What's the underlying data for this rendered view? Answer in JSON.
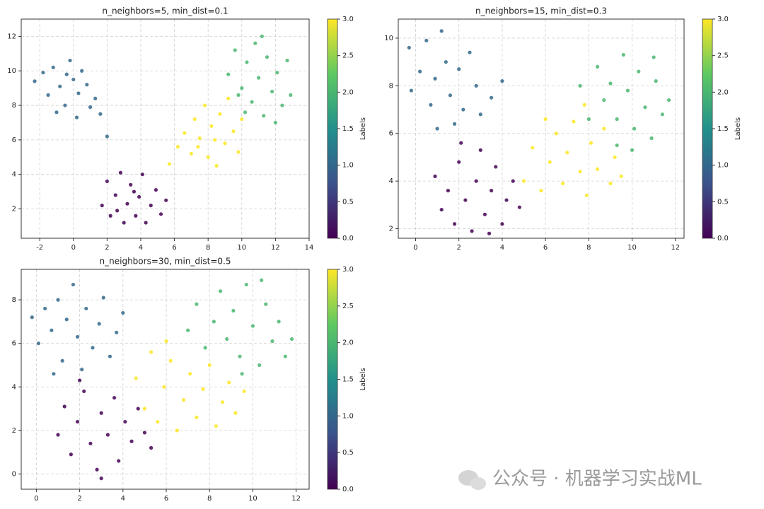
{
  "chart_data": [
    {
      "type": "scatter",
      "title": "n_neighbors=5, min_dist=0.1",
      "grid": true,
      "colormap": "viridis",
      "xlim": [
        -3.1,
        14
      ],
      "xticks": [
        -2,
        0,
        2,
        4,
        6,
        8,
        10,
        12,
        14
      ],
      "ylim": [
        0.3,
        13
      ],
      "yticks": [
        2,
        4,
        6,
        8,
        10,
        12
      ],
      "x": [
        -2.3,
        -1.8,
        -1.5,
        -1.2,
        -0.8,
        -0.5,
        -0.2,
        0.0,
        0.3,
        0.5,
        0.8,
        1.0,
        -1.0,
        0.2,
        1.3,
        -0.4,
        1.6,
        2.0,
        1.7,
        2.0,
        2.2,
        2.5,
        2.8,
        3.0,
        3.2,
        3.4,
        3.7,
        3.9,
        4.1,
        4.3,
        4.6,
        4.9,
        5.2,
        5.5,
        2.6,
        3.6,
        6.2,
        6.6,
        7.0,
        7.2,
        7.5,
        7.8,
        8.0,
        8.2,
        8.5,
        8.7,
        9.0,
        9.2,
        9.5,
        9.8,
        10.0,
        8.4,
        7.4,
        5.7,
        9.2,
        9.6,
        10.0,
        10.3,
        10.6,
        10.8,
        11.0,
        11.3,
        11.5,
        11.8,
        12.1,
        12.4,
        12.7,
        12.9,
        11.2,
        10.2,
        12.0,
        9.8
      ],
      "y": [
        9.4,
        9.9,
        8.6,
        10.2,
        9.1,
        8.0,
        10.6,
        9.5,
        8.7,
        10.0,
        9.2,
        7.9,
        7.6,
        7.3,
        8.4,
        9.8,
        7.5,
        6.2,
        2.2,
        3.6,
        1.6,
        2.8,
        4.1,
        1.2,
        2.3,
        3.4,
        1.6,
        2.7,
        4.0,
        1.2,
        2.2,
        3.1,
        1.7,
        2.5,
        1.9,
        3.0,
        5.6,
        6.4,
        5.2,
        7.2,
        6.1,
        8.0,
        5.0,
        6.8,
        4.5,
        7.5,
        5.8,
        8.4,
        6.5,
        5.3,
        7.2,
        6.0,
        5.6,
        4.6,
        9.8,
        11.2,
        9.0,
        10.5,
        8.2,
        11.6,
        9.6,
        7.4,
        10.8,
        8.8,
        9.9,
        8.0,
        10.6,
        8.6,
        12.0,
        7.6,
        7.0,
        8.6
      ],
      "c": [
        1,
        1,
        1,
        1,
        1,
        1,
        1,
        1,
        1,
        1,
        1,
        1,
        1,
        1,
        1,
        1,
        1,
        1,
        0,
        0,
        0,
        0,
        0,
        0,
        0,
        0,
        0,
        0,
        0,
        0,
        0,
        0,
        0,
        0,
        0,
        0,
        3,
        3,
        3,
        3,
        3,
        3,
        3,
        3,
        3,
        3,
        3,
        3,
        3,
        3,
        3,
        3,
        3,
        3,
        2,
        2,
        2,
        2,
        2,
        2,
        2,
        2,
        2,
        2,
        2,
        2,
        2,
        2,
        2,
        2,
        2,
        2
      ],
      "clim": [
        0,
        3
      ],
      "colorbar_label": "Labels",
      "cticks": [
        {
          "value": 0,
          "label": "0.0"
        },
        {
          "value": 0.5,
          "label": "0.5"
        },
        {
          "value": 1,
          "label": "1.0"
        },
        {
          "value": 1.5,
          "label": "1.5"
        },
        {
          "value": 2,
          "label": "2.0"
        },
        {
          "value": 2.5,
          "label": "2.5"
        },
        {
          "value": 3,
          "label": "3.0"
        }
      ]
    },
    {
      "type": "scatter",
      "title": "n_neighbors=15, min_dist=0.3",
      "grid": true,
      "colormap": "viridis",
      "xlim": [
        -0.8,
        12.4
      ],
      "xticks": [
        0,
        2,
        4,
        6,
        8,
        10,
        12
      ],
      "ylim": [
        1.6,
        10.8
      ],
      "yticks": [
        2,
        4,
        6,
        8,
        10
      ],
      "x": [
        -0.3,
        -0.2,
        0.2,
        0.5,
        0.7,
        0.9,
        1.2,
        1.4,
        1.6,
        1.8,
        2.0,
        2.2,
        2.5,
        2.8,
        3.0,
        3.5,
        4.0,
        1.0,
        0.9,
        1.2,
        1.5,
        1.8,
        2.0,
        2.3,
        2.6,
        2.8,
        3.0,
        3.2,
        3.5,
        3.7,
        4.0,
        4.2,
        4.5,
        4.8,
        2.1,
        3.4,
        5.0,
        5.4,
        5.8,
        6.2,
        6.5,
        6.8,
        7.0,
        7.3,
        7.6,
        7.9,
        8.1,
        8.4,
        8.7,
        9.0,
        9.2,
        9.5,
        6.0,
        7.8,
        7.6,
        8.0,
        8.4,
        8.7,
        9.0,
        9.3,
        9.6,
        9.8,
        10.1,
        10.3,
        10.6,
        10.9,
        11.1,
        11.4,
        11.7,
        10.0,
        11.0,
        9.3
      ],
      "y": [
        9.6,
        7.8,
        8.6,
        9.9,
        7.2,
        8.3,
        10.3,
        9.0,
        7.6,
        6.4,
        8.7,
        7.0,
        9.4,
        8.0,
        6.8,
        7.5,
        8.2,
        6.2,
        4.2,
        2.8,
        3.6,
        2.2,
        4.8,
        3.2,
        1.9,
        4.0,
        5.3,
        2.6,
        3.6,
        4.6,
        2.2,
        3.2,
        4.0,
        2.9,
        5.6,
        1.8,
        4.0,
        5.4,
        3.6,
        4.8,
        6.0,
        3.9,
        5.2,
        6.5,
        4.4,
        3.4,
        5.6,
        4.5,
        6.2,
        3.9,
        5.0,
        4.2,
        6.6,
        7.2,
        8.0,
        6.6,
        8.8,
        7.4,
        8.1,
        6.6,
        9.3,
        7.8,
        6.2,
        8.6,
        7.1,
        5.8,
        8.2,
        6.8,
        7.4,
        5.3,
        9.2,
        5.5
      ],
      "c": [
        1,
        1,
        1,
        1,
        1,
        1,
        1,
        1,
        1,
        1,
        1,
        1,
        1,
        1,
        1,
        1,
        1,
        1,
        0,
        0,
        0,
        0,
        0,
        0,
        0,
        0,
        0,
        0,
        0,
        0,
        0,
        0,
        0,
        0,
        0,
        0,
        3,
        3,
        3,
        3,
        3,
        3,
        3,
        3,
        3,
        3,
        3,
        3,
        3,
        3,
        3,
        3,
        3,
        3,
        2,
        2,
        2,
        2,
        2,
        2,
        2,
        2,
        2,
        2,
        2,
        2,
        2,
        2,
        2,
        2,
        2,
        2
      ],
      "clim": [
        0,
        3
      ],
      "colorbar_label": "Labels",
      "cticks": [
        {
          "value": 0,
          "label": "0.0"
        },
        {
          "value": 0.5,
          "label": "0.5"
        },
        {
          "value": 1,
          "label": "1.0"
        },
        {
          "value": 1.5,
          "label": "1.5"
        },
        {
          "value": 2,
          "label": "2.0"
        },
        {
          "value": 2.5,
          "label": "2.5"
        },
        {
          "value": 3,
          "label": "3.0"
        }
      ]
    },
    {
      "type": "scatter",
      "title": "n_neighbors=30, min_dist=0.5",
      "grid": true,
      "colormap": "viridis",
      "xlim": [
        -0.7,
        12.6
      ],
      "xticks": [
        0,
        2,
        4,
        6,
        8,
        10,
        12
      ],
      "ylim": [
        -0.7,
        9.4
      ],
      "yticks": [
        0,
        2,
        4,
        6,
        8
      ],
      "x": [
        -0.2,
        0.1,
        0.4,
        0.7,
        1.0,
        1.2,
        1.4,
        1.7,
        1.9,
        2.1,
        2.3,
        2.6,
        2.9,
        3.1,
        3.4,
        3.7,
        4.0,
        0.8,
        1.0,
        1.3,
        1.6,
        1.9,
        2.2,
        2.5,
        2.8,
        3.0,
        3.3,
        3.6,
        3.8,
        4.1,
        4.4,
        4.7,
        5.0,
        5.3,
        2.0,
        3.0,
        4.6,
        5.0,
        5.3,
        5.6,
        5.9,
        6.2,
        6.5,
        6.8,
        7.1,
        7.4,
        7.7,
        8.0,
        8.3,
        8.6,
        8.9,
        9.2,
        6.0,
        9.6,
        7.0,
        7.4,
        7.8,
        8.2,
        8.5,
        8.8,
        9.1,
        9.4,
        9.7,
        10.0,
        10.3,
        10.6,
        10.9,
        11.2,
        11.5,
        11.8,
        10.4,
        9.5
      ],
      "y": [
        7.2,
        6.0,
        7.6,
        6.6,
        8.0,
        5.2,
        7.1,
        8.7,
        6.3,
        4.8,
        7.6,
        5.8,
        6.9,
        8.1,
        5.4,
        6.5,
        7.4,
        4.6,
        1.8,
        3.1,
        0.9,
        2.4,
        3.8,
        1.4,
        0.2,
        2.8,
        1.8,
        3.5,
        0.6,
        2.4,
        1.5,
        3.0,
        1.9,
        1.2,
        4.3,
        -0.2,
        4.4,
        3.0,
        5.6,
        2.4,
        4.0,
        5.2,
        2.0,
        3.4,
        4.6,
        2.6,
        3.9,
        5.0,
        2.2,
        3.3,
        4.2,
        2.8,
        6.1,
        3.8,
        6.6,
        7.8,
        5.8,
        7.0,
        8.4,
        6.2,
        7.5,
        5.4,
        8.7,
        6.8,
        5.0,
        7.8,
        6.1,
        7.0,
        5.4,
        6.2,
        8.9,
        4.6
      ],
      "c": [
        1,
        1,
        1,
        1,
        1,
        1,
        1,
        1,
        1,
        1,
        1,
        1,
        1,
        1,
        1,
        1,
        1,
        1,
        0,
        0,
        0,
        0,
        0,
        0,
        0,
        0,
        0,
        0,
        0,
        0,
        0,
        0,
        0,
        0,
        0,
        0,
        3,
        3,
        3,
        3,
        3,
        3,
        3,
        3,
        3,
        3,
        3,
        3,
        3,
        3,
        3,
        3,
        3,
        3,
        2,
        2,
        2,
        2,
        2,
        2,
        2,
        2,
        2,
        2,
        2,
        2,
        2,
        2,
        2,
        2,
        2,
        2
      ],
      "clim": [
        0,
        3
      ],
      "colorbar_label": "Labels",
      "cticks": [
        {
          "value": 0,
          "label": "0.0"
        },
        {
          "value": 0.5,
          "label": "0.5"
        },
        {
          "value": 1,
          "label": "1.0"
        },
        {
          "value": 1.5,
          "label": "1.5"
        },
        {
          "value": 2,
          "label": "2.0"
        },
        {
          "value": 2.5,
          "label": "2.5"
        },
        {
          "value": 3,
          "label": "3.0"
        }
      ]
    }
  ],
  "watermark": "公众号 · 机器学习实战ML"
}
